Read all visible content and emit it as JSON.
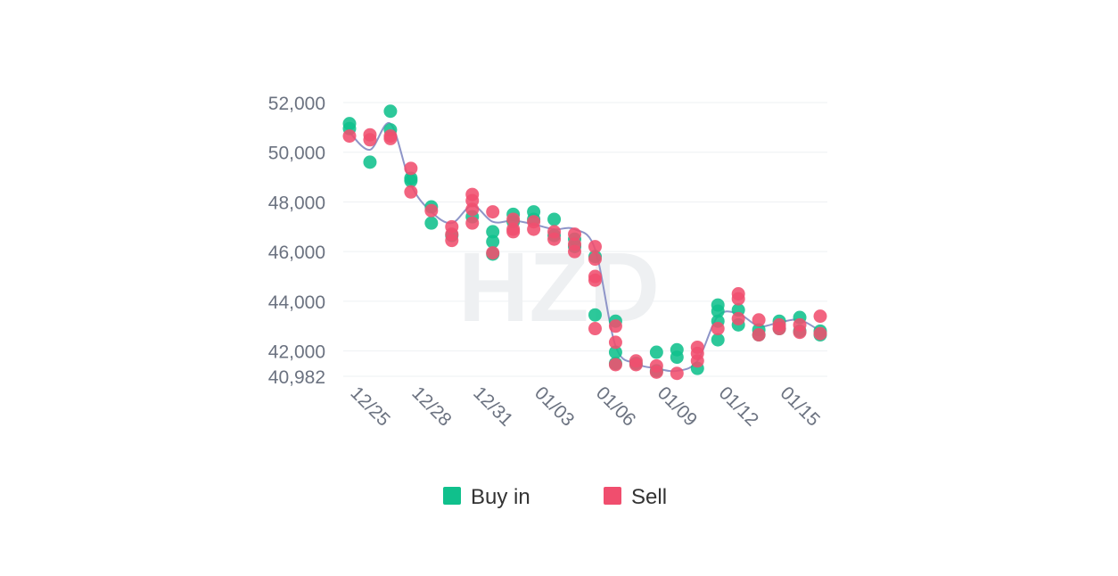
{
  "chart_data": {
    "type": "scatter",
    "yticks": [
      52000,
      50000,
      48000,
      46000,
      44000,
      42000,
      40982
    ],
    "ytick_labels": [
      "52,000",
      "50,000",
      "48,000",
      "46,000",
      "44,000",
      "42,000",
      "40,982"
    ],
    "ylim": [
      40982,
      52000
    ],
    "xlim": [
      0,
      23
    ],
    "xtick_labels": [
      "12/25",
      "12/28",
      "12/31",
      "01/03",
      "01/06",
      "01/09",
      "01/12",
      "01/15"
    ],
    "xtick_positions": [
      0,
      3,
      6,
      9,
      12,
      15,
      18,
      21
    ],
    "grid": true,
    "legend_position": "bottom-center",
    "watermark": "HZD",
    "series": [
      {
        "name": "Buy in",
        "color": "#10c08c",
        "points": [
          [
            0,
            51150
          ],
          [
            0,
            50950
          ],
          [
            1,
            49600
          ],
          [
            2,
            51650
          ],
          [
            2,
            50900
          ],
          [
            3,
            48850
          ],
          [
            3,
            48950
          ],
          [
            4,
            47800
          ],
          [
            4,
            47150
          ],
          [
            5,
            46650
          ],
          [
            6,
            47400
          ],
          [
            7,
            46800
          ],
          [
            7,
            46400
          ],
          [
            7,
            45900
          ],
          [
            8,
            47500
          ],
          [
            8,
            47200
          ],
          [
            9,
            47600
          ],
          [
            9,
            47300
          ],
          [
            10,
            47300
          ],
          [
            10,
            46650
          ],
          [
            11,
            46500
          ],
          [
            11,
            46200
          ],
          [
            12,
            45800
          ],
          [
            12,
            43450
          ],
          [
            13,
            43200
          ],
          [
            13,
            41950
          ],
          [
            13,
            41500
          ],
          [
            14,
            41500
          ],
          [
            15,
            41950
          ],
          [
            15,
            41200
          ],
          [
            16,
            42050
          ],
          [
            16,
            41750
          ],
          [
            17,
            41300
          ],
          [
            18,
            43850
          ],
          [
            18,
            43600
          ],
          [
            18,
            43200
          ],
          [
            18,
            42450
          ],
          [
            19,
            43650
          ],
          [
            19,
            43050
          ],
          [
            20,
            42850
          ],
          [
            20,
            42650
          ],
          [
            21,
            43200
          ],
          [
            21,
            42900
          ],
          [
            22,
            43350
          ],
          [
            22,
            42800
          ],
          [
            23,
            42800
          ],
          [
            23,
            42650
          ]
        ]
      },
      {
        "name": "Sell",
        "color": "#f04e6e",
        "points": [
          [
            0,
            50650
          ],
          [
            1,
            50700
          ],
          [
            1,
            50500
          ],
          [
            2,
            50650
          ],
          [
            2,
            50550
          ],
          [
            3,
            49350
          ],
          [
            3,
            48400
          ],
          [
            4,
            47650
          ],
          [
            5,
            47000
          ],
          [
            5,
            46700
          ],
          [
            5,
            46450
          ],
          [
            6,
            48300
          ],
          [
            6,
            48050
          ],
          [
            6,
            47700
          ],
          [
            6,
            47150
          ],
          [
            7,
            47600
          ],
          [
            7,
            45950
          ],
          [
            8,
            47300
          ],
          [
            8,
            46900
          ],
          [
            8,
            46800
          ],
          [
            9,
            47200
          ],
          [
            9,
            46900
          ],
          [
            10,
            46800
          ],
          [
            10,
            46500
          ],
          [
            11,
            46700
          ],
          [
            11,
            46300
          ],
          [
            11,
            46000
          ],
          [
            12,
            46200
          ],
          [
            12,
            45700
          ],
          [
            12,
            45000
          ],
          [
            12,
            44850
          ],
          [
            12,
            42900
          ],
          [
            13,
            43000
          ],
          [
            13,
            42350
          ],
          [
            13,
            41450
          ],
          [
            14,
            41600
          ],
          [
            14,
            41450
          ],
          [
            15,
            41400
          ],
          [
            15,
            41150
          ],
          [
            16,
            41100
          ],
          [
            17,
            42150
          ],
          [
            17,
            41900
          ],
          [
            17,
            41600
          ],
          [
            18,
            42900
          ],
          [
            19,
            44300
          ],
          [
            19,
            44100
          ],
          [
            19,
            43300
          ],
          [
            20,
            43250
          ],
          [
            20,
            42650
          ],
          [
            21,
            43050
          ],
          [
            21,
            42900
          ],
          [
            22,
            43050
          ],
          [
            22,
            42750
          ],
          [
            23,
            43400
          ],
          [
            23,
            42700
          ]
        ]
      }
    ],
    "trend_line": {
      "color": "#8e95c8",
      "points": [
        [
          0,
          50800
        ],
        [
          1,
          50100
        ],
        [
          2,
          51150
        ],
        [
          3,
          48700
        ],
        [
          4,
          47600
        ],
        [
          5,
          47150
        ],
        [
          6,
          47850
        ],
        [
          7,
          47200
        ],
        [
          8,
          47250
        ],
        [
          9,
          47100
        ],
        [
          10,
          46900
        ],
        [
          11,
          46900
        ],
        [
          12,
          46100
        ],
        [
          13,
          42200
        ],
        [
          14,
          41500
        ],
        [
          15,
          41300
        ],
        [
          16,
          41200
        ],
        [
          17,
          41600
        ],
        [
          18,
          43400
        ],
        [
          19,
          43500
        ],
        [
          20,
          43000
        ],
        [
          21,
          43150
        ],
        [
          22,
          43250
        ],
        [
          23,
          42800
        ]
      ]
    }
  }
}
